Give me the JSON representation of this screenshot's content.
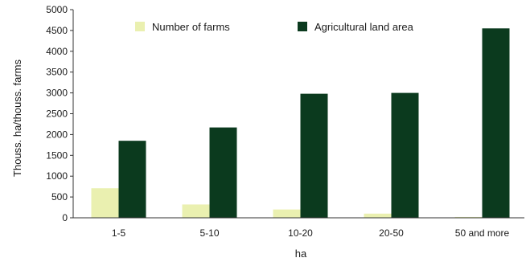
{
  "chart_data": {
    "type": "bar",
    "categories": [
      "1-5",
      "5-10",
      "10-20",
      "20-50",
      "50 and more"
    ],
    "series": [
      {
        "name": "Number of farms",
        "values": [
          710,
          320,
          200,
          100,
          20
        ],
        "color": "#eaf0b0"
      },
      {
        "name": "Agricultural land area",
        "values": [
          1850,
          2170,
          2980,
          3000,
          4550
        ],
        "color": "#0b3a1e"
      }
    ],
    "xlabel": "ha",
    "ylabel": "Thouss. ha/thouss. farms",
    "ylim": [
      0,
      5000
    ],
    "yticks": [
      0,
      500,
      1000,
      1500,
      2000,
      2500,
      3000,
      3500,
      4000,
      4500,
      5000
    ],
    "legend_position": "top",
    "grid": false
  }
}
